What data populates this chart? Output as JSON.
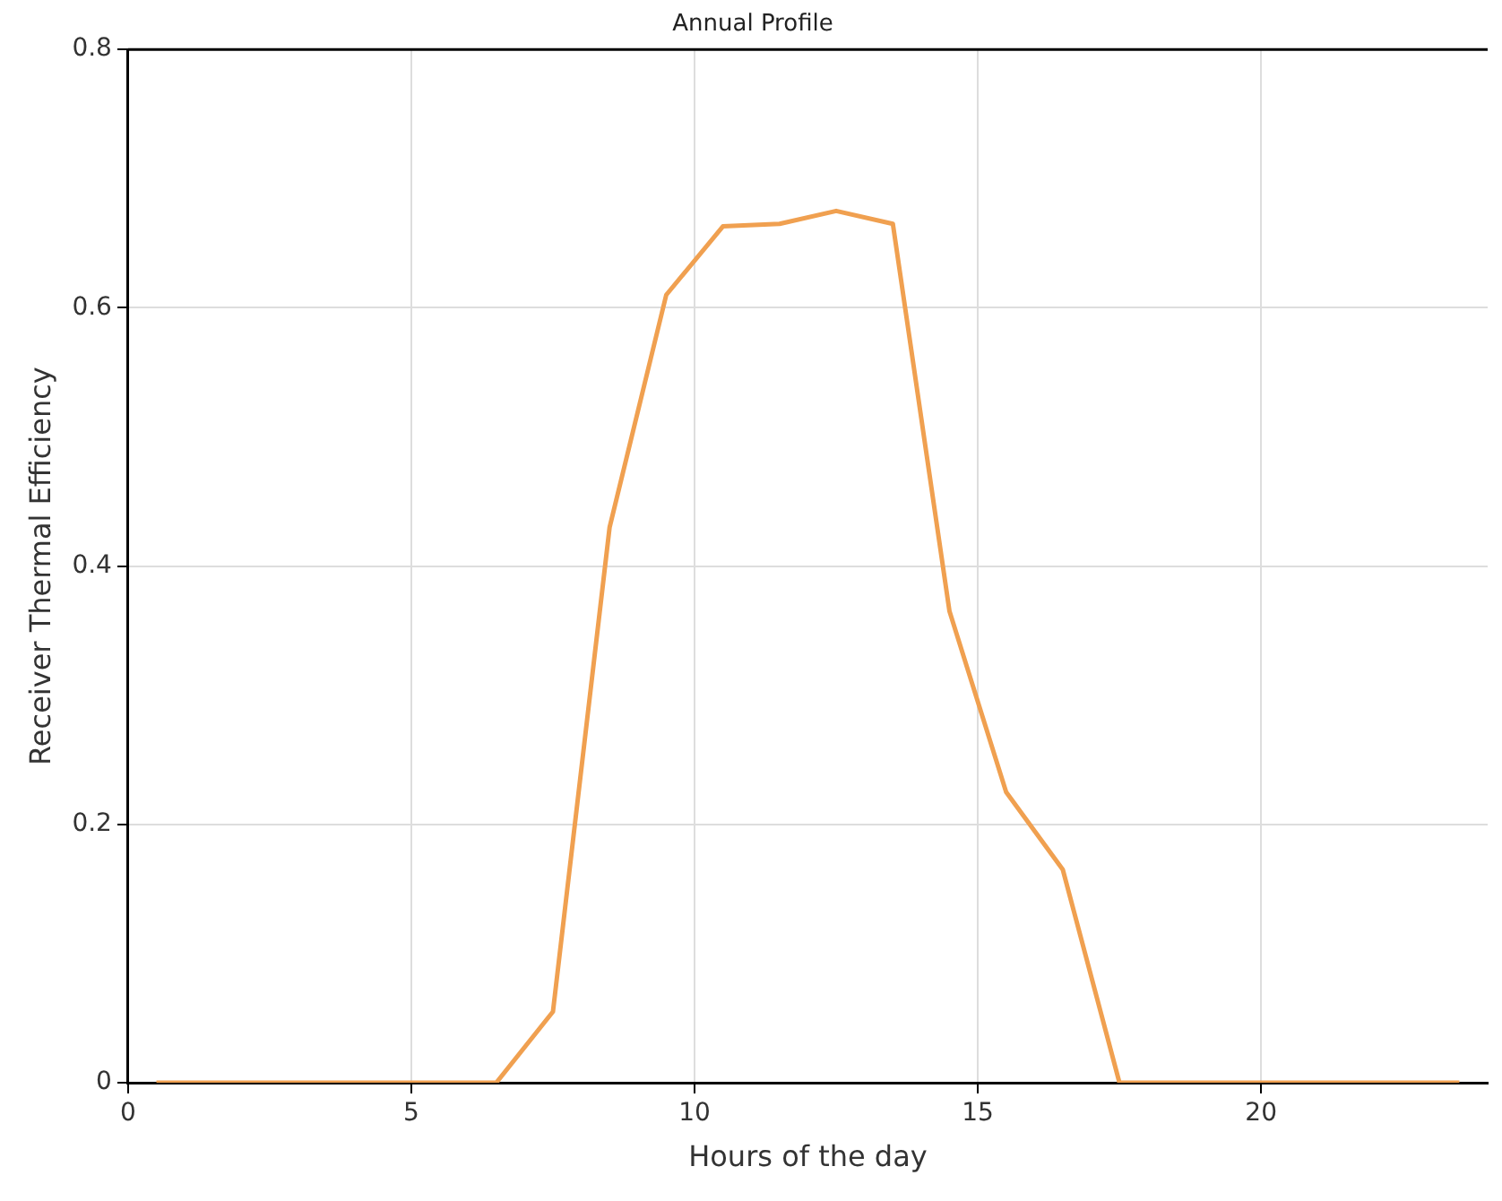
{
  "chart_data": {
    "type": "line",
    "title": "Annual Profile",
    "xlabel": "Hours of the day",
    "ylabel": "Receiver Thermal Efficiency",
    "x": [
      0.5,
      1.5,
      2.5,
      3.5,
      4.5,
      5.5,
      6.5,
      7.5,
      8.5,
      9.5,
      10.5,
      11.5,
      12.5,
      13.5,
      14.5,
      15.5,
      16.5,
      17.5,
      18.5,
      19.5,
      20.5,
      21.5,
      22.5,
      23.5
    ],
    "series": [
      {
        "color": "#f0a050",
        "values": [
          0,
          0,
          0,
          0,
          0,
          0,
          0,
          0.055,
          0.43,
          0.61,
          0.663,
          0.665,
          0.675,
          0.665,
          0.365,
          0.225,
          0.165,
          0,
          0,
          0,
          0,
          0,
          0,
          0
        ]
      }
    ],
    "xlim": [
      0,
      24
    ],
    "xticks": [
      0,
      5,
      10,
      15,
      20
    ],
    "ylim": [
      0,
      0.8
    ],
    "yticks": [
      0,
      0.2,
      0.4,
      0.6,
      0.8
    ],
    "grid": true,
    "legend": false,
    "marker": "none",
    "line_style": "solid"
  }
}
